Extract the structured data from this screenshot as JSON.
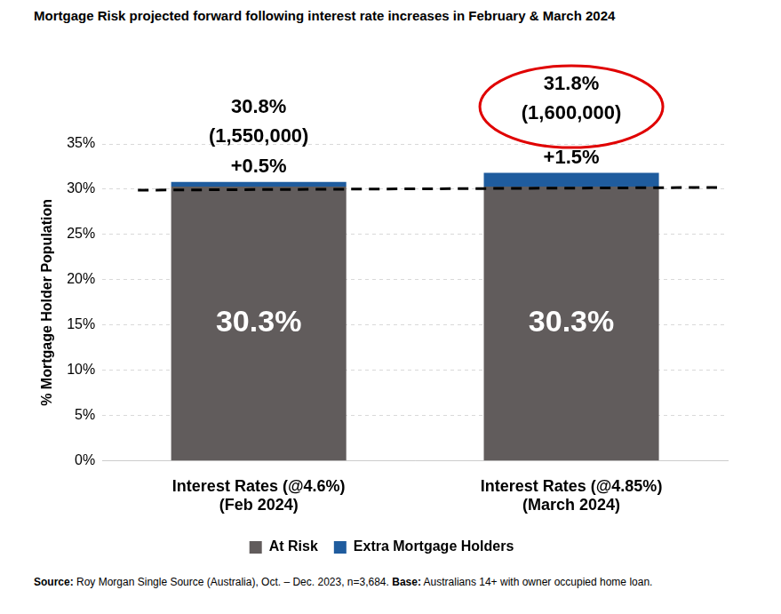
{
  "chart_data": {
    "type": "bar",
    "title": "Mortgage Risk projected forward following interest rate increases in February & March 2024",
    "y_label": "% Mortgage Holder Population",
    "categories": [
      [
        "Interest Rates (@4.6%)",
        "(Feb 2024)"
      ],
      [
        "Interest Rates (@4.85%)",
        "(March 2024)"
      ]
    ],
    "series": [
      {
        "name": "At Risk",
        "color": "#615c5c",
        "values": [
          30.3,
          30.3
        ],
        "value_labels": [
          "30.3%",
          "30.3%"
        ]
      },
      {
        "name": "Extra Mortgage Holders",
        "color": "#1f5c9e",
        "values": [
          0.5,
          1.5
        ],
        "value_labels": [
          "+0.5%",
          "+1.5%"
        ]
      }
    ],
    "totals": [
      30.8,
      31.8
    ],
    "total_labels": [
      "30.8%",
      "31.8%"
    ],
    "count_labels": [
      "(1,550,000)",
      "(1,600,000)"
    ],
    "highlight": [
      false,
      true
    ],
    "reference_line": [
      29.9,
      30.2
    ],
    "ylim": [
      0,
      35
    ],
    "yticks": [
      {
        "value": 0,
        "label": "0%"
      },
      {
        "value": 5,
        "label": "5%"
      },
      {
        "value": 10,
        "label": "10%"
      },
      {
        "value": 15,
        "label": "15%"
      },
      {
        "value": 20,
        "label": "20%"
      },
      {
        "value": 25,
        "label": "25%"
      },
      {
        "value": 30,
        "label": "30%"
      },
      {
        "value": 35,
        "label": "35%"
      }
    ],
    "grid": true,
    "stacked": true,
    "data_labels": true,
    "legend": "bottom",
    "source": "Source: Roy Morgan Single Source (Australia), Oct. – Dec. 2023, n=3,684.",
    "base": "Base: Australians 14+ with owner occupied home loan."
  }
}
